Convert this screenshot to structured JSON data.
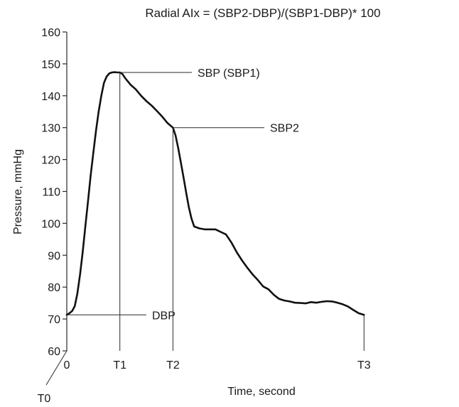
{
  "chart_data": {
    "type": "line",
    "title": "Radial AIx = (SBP2-DBP)/(SBP1-DBP)* 100",
    "xlabel": "Time, second",
    "ylabel": "Pressure, mmHg",
    "ylim": [
      60,
      160
    ],
    "yticks": [
      60,
      70,
      80,
      90,
      100,
      110,
      120,
      130,
      140,
      150,
      160
    ],
    "grid": false,
    "x_markers": [
      {
        "label": "0",
        "x": 0
      },
      {
        "label": "T1",
        "x": 1
      },
      {
        "label": "T2",
        "x": 2
      },
      {
        "label": "T3",
        "x": 5.6
      }
    ],
    "origin_label": "T0",
    "annotations": [
      {
        "label": "SBP (SBP1)",
        "x": 1,
        "y": 147.3
      },
      {
        "label": "SBP2",
        "x": 2,
        "y": 130
      },
      {
        "label": "DBP",
        "x": 0,
        "y": 71.3
      }
    ],
    "series": [
      {
        "x": [
          0,
          0.05,
          0.1,
          0.15,
          0.2,
          0.25,
          0.3,
          0.35,
          0.4,
          0.45,
          0.5,
          0.55,
          0.6,
          0.65,
          0.7,
          0.75,
          0.8,
          0.85,
          0.9,
          0.95,
          1.0,
          1.05,
          1.1,
          1.2,
          1.3,
          1.4,
          1.5,
          1.6,
          1.7,
          1.8,
          1.9,
          2.0,
          2.05,
          2.1,
          2.15,
          2.2,
          2.25,
          2.3,
          2.35,
          2.4,
          2.5,
          2.6,
          2.7,
          2.8,
          2.9,
          3.0,
          3.1,
          3.2,
          3.3,
          3.4,
          3.5,
          3.6,
          3.7,
          3.8,
          3.9,
          4.0,
          4.1,
          4.2,
          4.3,
          4.4,
          4.5,
          4.6,
          4.7,
          4.8,
          4.9,
          5.0,
          5.1,
          5.2,
          5.3,
          5.4,
          5.5,
          5.6
        ],
        "y": [
          71.3,
          71.8,
          72.5,
          74,
          78,
          84,
          91,
          99,
          107,
          115,
          122,
          129,
          135,
          140,
          144,
          146,
          147,
          147.3,
          147.4,
          147.3,
          147.3,
          146.8,
          145.5,
          143.5,
          142,
          140,
          138.3,
          136.9,
          135.2,
          133.4,
          131.4,
          130,
          127.5,
          123.5,
          119,
          114.4,
          109.5,
          105,
          101.5,
          99,
          98.4,
          98.1,
          98.1,
          98.1,
          97.3,
          96.5,
          94,
          91,
          88.4,
          86.1,
          84,
          82.2,
          80.2,
          79.3,
          77.6,
          76.3,
          75.8,
          75.5,
          75.1,
          75.0,
          74.9,
          75.3,
          75.1,
          75.4,
          75.6,
          75.5,
          75.1,
          74.6,
          73.9,
          72.8,
          71.8,
          71.3
        ]
      }
    ]
  }
}
